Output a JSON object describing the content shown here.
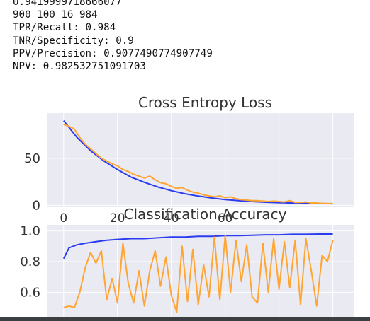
{
  "output": {
    "lines": [
      "0.9419999718666077",
      "900 100 16 984",
      "TPR/Recall: 0.984",
      "TNR/Specificity: 0.9",
      "PPV/Precision: 0.9077490774907749",
      "NPV: 0.982532751091703"
    ]
  },
  "colors": {
    "plot_bg": "#eaeaf2",
    "grid": "#ffffff",
    "blue": "#2a3cf0",
    "orange": "#ffa533",
    "text": "#333333"
  },
  "chart_data": [
    {
      "type": "line",
      "title": "Cross Entropy Loss",
      "xlabel": "",
      "ylabel": "",
      "xlim": [
        -6,
        108
      ],
      "ylim": [
        -2,
        98
      ],
      "xticks": [
        0,
        20,
        40,
        60
      ],
      "xtick_labels": [
        "0",
        "20",
        "40",
        "60"
      ],
      "yticks": [
        0,
        50
      ],
      "ytick_labels": [
        "0",
        "50"
      ],
      "grid": true,
      "series": [
        {
          "color": "#2a3cf0",
          "x": [
            0,
            5,
            10,
            15,
            20,
            25,
            30,
            35,
            40,
            45,
            50,
            55,
            60,
            65,
            70,
            75,
            80,
            85,
            90,
            95,
            100
          ],
          "values": [
            90,
            72,
            58,
            47,
            38,
            30,
            24.5,
            19.5,
            15.5,
            12.3,
            9.8,
            7.8,
            6.1,
            4.9,
            4.0,
            3.3,
            2.8,
            2.4,
            2.1,
            1.9,
            1.7
          ]
        },
        {
          "color": "#ffa533",
          "x": [
            0,
            2,
            4,
            6,
            8,
            10,
            12,
            14,
            16,
            18,
            20,
            22,
            24,
            26,
            28,
            30,
            32,
            34,
            36,
            38,
            40,
            42,
            44,
            46,
            48,
            50,
            52,
            54,
            56,
            58,
            60,
            62,
            64,
            66,
            68,
            70,
            72,
            74,
            76,
            78,
            80,
            82,
            84,
            86,
            88,
            90,
            92,
            94,
            96,
            98,
            100
          ],
          "values": [
            86,
            84,
            81,
            72,
            65,
            60,
            55,
            50,
            47,
            44,
            42,
            38,
            36,
            33,
            31,
            29,
            31,
            27,
            24,
            23,
            20,
            18,
            19,
            16,
            14,
            13,
            11,
            10,
            9,
            10,
            8,
            9,
            7,
            6,
            5.5,
            5,
            5,
            4.5,
            4,
            4.5,
            4,
            3.5,
            5,
            3,
            3,
            3.5,
            2.5,
            2.5,
            2,
            2,
            2
          ]
        }
      ]
    },
    {
      "type": "line",
      "title": "Classification Accuracy",
      "xlabel": "",
      "ylabel": "",
      "xlim": [
        -6,
        108
      ],
      "ylim": [
        0.44,
        1.04
      ],
      "yticks": [
        0.6,
        0.8,
        1.0
      ],
      "ytick_labels": [
        "0.6",
        "0.8",
        "1.0"
      ],
      "grid": true,
      "series": [
        {
          "color": "#2a3cf0",
          "x": [
            0,
            2,
            5,
            8,
            12,
            16,
            20,
            25,
            30,
            35,
            40,
            45,
            50,
            55,
            60,
            65,
            70,
            75,
            80,
            85,
            90,
            95,
            100
          ],
          "values": [
            0.82,
            0.89,
            0.91,
            0.92,
            0.93,
            0.94,
            0.945,
            0.95,
            0.95,
            0.955,
            0.96,
            0.96,
            0.965,
            0.965,
            0.97,
            0.97,
            0.972,
            0.975,
            0.975,
            0.978,
            0.978,
            0.98,
            0.98
          ]
        },
        {
          "color": "#ffa533",
          "x": [
            0,
            2,
            4,
            6,
            8,
            10,
            12,
            14,
            16,
            18,
            20,
            22,
            24,
            26,
            28,
            30,
            32,
            34,
            36,
            38,
            40,
            42,
            44,
            46,
            48,
            50,
            52,
            54,
            56,
            58,
            60,
            62,
            64,
            66,
            68,
            70,
            72,
            74,
            76,
            78,
            80,
            82,
            84,
            86,
            88,
            90,
            92,
            94,
            96,
            98,
            100
          ],
          "values": [
            0.5,
            0.51,
            0.5,
            0.6,
            0.76,
            0.86,
            0.79,
            0.87,
            0.55,
            0.69,
            0.53,
            0.92,
            0.66,
            0.53,
            0.74,
            0.51,
            0.74,
            0.87,
            0.64,
            0.83,
            0.58,
            0.47,
            0.9,
            0.54,
            0.88,
            0.52,
            0.78,
            0.57,
            0.96,
            0.55,
            0.97,
            0.6,
            0.94,
            0.67,
            0.91,
            0.57,
            0.53,
            0.92,
            0.6,
            0.95,
            0.62,
            0.93,
            0.63,
            0.94,
            0.52,
            0.95,
            0.74,
            0.51,
            0.84,
            0.8,
            0.94
          ]
        }
      ]
    }
  ]
}
